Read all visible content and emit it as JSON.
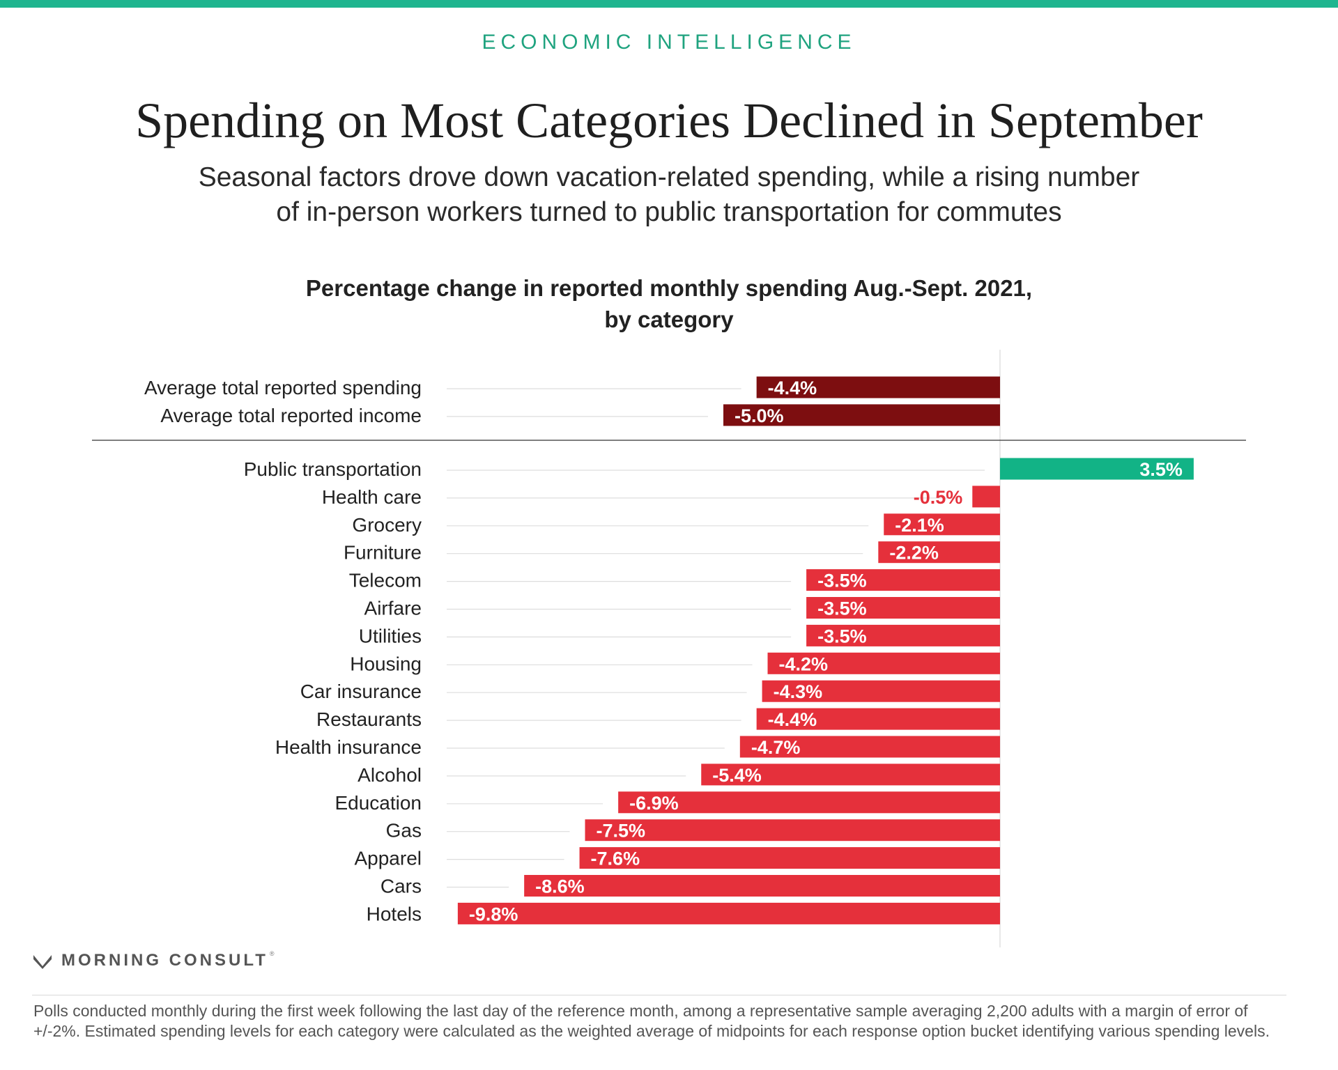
{
  "header": {
    "kicker": "ECONOMIC INTELLIGENCE",
    "title": "Spending on Most Categories Declined in September",
    "subtitle_line1": "Seasonal factors drove down vacation-related spending, while a rising number",
    "subtitle_line2": "of in-person workers turned to public transportation for commutes"
  },
  "colors": {
    "accent": "#1fb58f",
    "summary_bar": "#7d0e10",
    "negative_bar": "#e5303b",
    "positive_bar": "#12b386"
  },
  "chart_data": {
    "type": "bar",
    "orientation": "horizontal",
    "title_line1": "Percentage change in reported monthly spending Aug.-Sept. 2021,",
    "title_line2": "by category",
    "xlim": [
      -9.8,
      3.5
    ],
    "groups": [
      {
        "name": "summary",
        "categories": [
          "Average total reported spending",
          "Average total reported income"
        ],
        "values": [
          -4.4,
          -5.0
        ],
        "labels": [
          "-4.4%",
          "-5.0%"
        ]
      },
      {
        "name": "categories",
        "categories": [
          "Public transportation",
          "Health care",
          "Grocery",
          "Furniture",
          "Telecom",
          "Airfare",
          "Utilities",
          "Housing",
          "Car insurance",
          "Restaurants",
          "Health insurance",
          "Alcohol",
          "Education",
          "Gas",
          "Apparel",
          "Cars",
          "Hotels"
        ],
        "values": [
          3.5,
          -0.5,
          -2.1,
          -2.2,
          -3.5,
          -3.5,
          -3.5,
          -4.2,
          -4.3,
          -4.4,
          -4.7,
          -5.4,
          -6.9,
          -7.5,
          -7.6,
          -8.6,
          -9.8
        ],
        "labels": [
          "3.5%",
          "-0.5%",
          "-2.1%",
          "-2.2%",
          "-3.5%",
          "-3.5%",
          "-3.5%",
          "-4.2%",
          "-4.3%",
          "-4.4%",
          "-4.7%",
          "-5.4%",
          "-6.9%",
          "-7.5%",
          "-7.6%",
          "-8.6%",
          "-9.8%"
        ]
      }
    ]
  },
  "branding": {
    "logo_text": "MORNING CONSULT",
    "logo_mark": "®"
  },
  "footnote": "Polls conducted monthly during the first week following the last day of the reference month, among a representative sample averaging 2,200 adults with a margin of error of +/-2%. Estimated spending levels for each category were calculated as the weighted average of midpoints for each response option bucket identifying various spending levels."
}
